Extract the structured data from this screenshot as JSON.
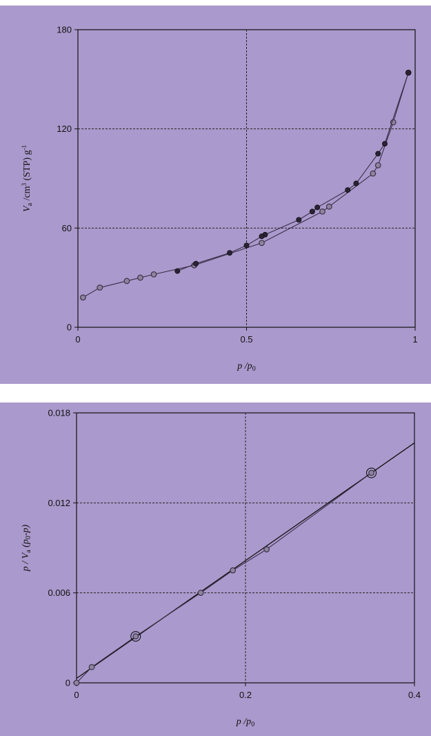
{
  "chart_data": [
    {
      "type": "line",
      "title": "",
      "xlim": [
        0,
        1
      ],
      "ylim": [
        0,
        180
      ],
      "xticks": [
        "0",
        "0.5",
        "1"
      ],
      "yticks": [
        "0",
        "60",
        "120",
        "180"
      ],
      "xlabel": {
        "main": "p /p",
        "sub": "0"
      },
      "ylabel": {
        "v": "V",
        "v_sub": "a",
        "rest": " /cm",
        "sup3": "3",
        "stp": " (STP) g",
        "sup_neg1": "-1"
      },
      "grid": {
        "x": [
          0.5
        ],
        "y": [
          60,
          120
        ]
      },
      "series": [
        {
          "marker": "open",
          "x": [
            0.015,
            0.065,
            0.145,
            0.185,
            0.225,
            0.345,
            0.545,
            0.725,
            0.745,
            0.875,
            0.89,
            0.935,
            0.98
          ],
          "y": [
            18,
            24,
            28,
            30,
            32,
            37.5,
            51,
            70,
            73,
            93,
            98,
            124,
            154
          ]
        },
        {
          "marker": "filled",
          "x": [
            0.98,
            0.91,
            0.89,
            0.825,
            0.8,
            0.71,
            0.695,
            0.655,
            0.555,
            0.545,
            0.5,
            0.45,
            0.35,
            0.295
          ],
          "y": [
            154,
            111,
            105,
            87,
            83,
            72.5,
            70,
            65,
            56,
            55,
            49.5,
            45,
            38.5,
            34
          ]
        }
      ]
    },
    {
      "type": "line",
      "title": "",
      "xlim": [
        0,
        0.4
      ],
      "ylim": [
        0,
        0.018
      ],
      "xticks": [
        "0",
        "0.2",
        "0.4"
      ],
      "yticks": [
        "0",
        "0.006",
        "0.012",
        "0.018"
      ],
      "xlabel": {
        "main": "p /p",
        "sub": "0"
      },
      "ylabel": {
        "text": "p / V",
        "sub_a": "a",
        "paren": " (p",
        "sub_0": "0",
        "tail": "-p)"
      },
      "grid": {
        "x": [
          0.2
        ],
        "y": [
          0.006,
          0.012
        ]
      },
      "series": [
        {
          "marker": "open",
          "x": [
            0,
            0.018,
            0.07,
            0.147,
            0.185,
            0.225,
            0.349
          ],
          "y": [
            0,
            0.00105,
            0.0031,
            0.006,
            0.0075,
            0.0089,
            0.014
          ]
        }
      ],
      "highlighted_points": [
        {
          "x": 0.07,
          "y": 0.0031
        },
        {
          "x": 0.349,
          "y": 0.014
        }
      ],
      "fit_line": {
        "x": [
          0,
          0.4
        ],
        "y": [
          0.0003,
          0.016
        ]
      }
    }
  ]
}
